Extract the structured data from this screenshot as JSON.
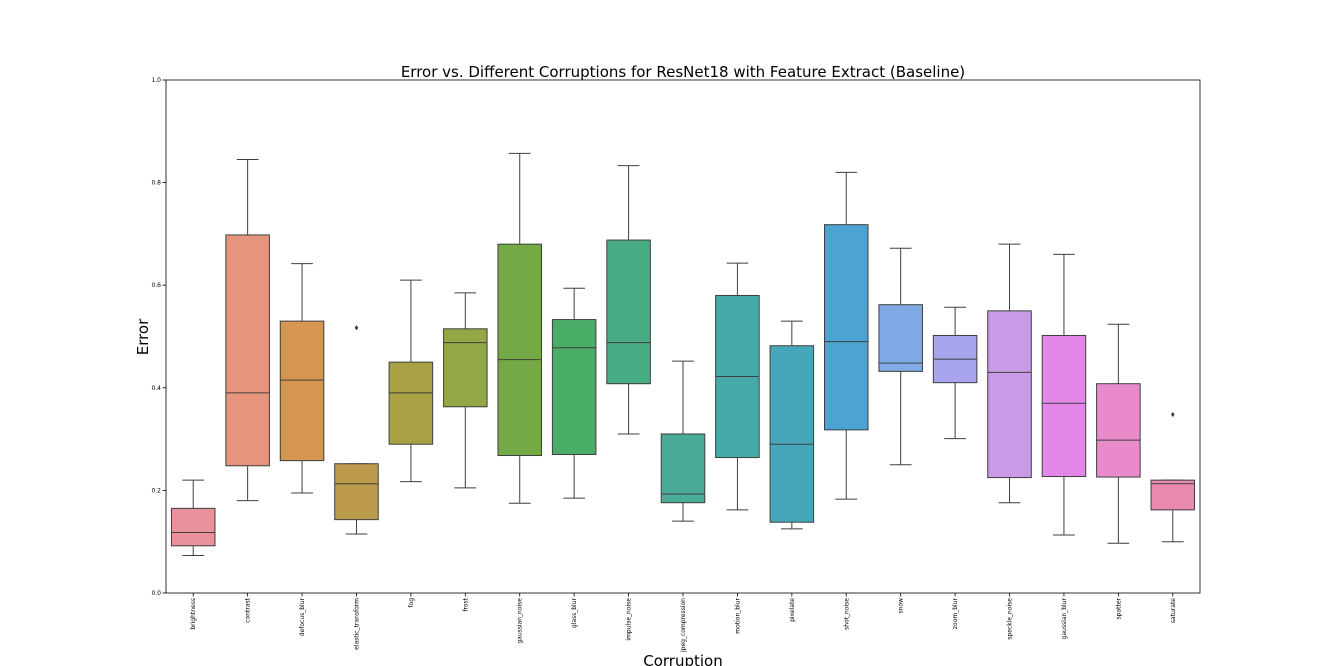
{
  "chart_data": {
    "type": "box",
    "title": "Error vs. Different Corruptions for ResNet18 with Feature Extract (Baseline)",
    "xlabel": "Corruption",
    "ylabel": "Error",
    "ylim": [
      0.0,
      1.0
    ],
    "yticks": [
      "0.0",
      "0.2",
      "0.4",
      "0.6",
      "0.8",
      "1.0"
    ],
    "grid": false,
    "categories": [
      "brightness",
      "contrast",
      "defocus_blur",
      "elastic_transform",
      "fog",
      "frost",
      "gaussian_noise",
      "glass_blur",
      "impulse_noise",
      "jpeg_compression",
      "motion_blur",
      "pixelate",
      "shot_noise",
      "snow",
      "zoom_blur",
      "speckle_noise",
      "gaussian_blur",
      "spatter",
      "saturate"
    ],
    "boxes": [
      {
        "whisker_low": 0.073,
        "q1": 0.092,
        "median": 0.118,
        "q3": 0.165,
        "whisker_high": 0.22,
        "outliers": [],
        "color": "#e8919a"
      },
      {
        "whisker_low": 0.18,
        "q1": 0.248,
        "median": 0.39,
        "q3": 0.698,
        "whisker_high": 0.845,
        "outliers": [],
        "color": "#e6957d"
      },
      {
        "whisker_low": 0.195,
        "q1": 0.258,
        "median": 0.415,
        "q3": 0.53,
        "whisker_high": 0.642,
        "outliers": [],
        "color": "#d69650"
      },
      {
        "whisker_low": 0.115,
        "q1": 0.143,
        "median": 0.213,
        "q3": 0.252,
        "whisker_high": 0.252,
        "outliers": [
          0.517
        ],
        "color": "#bd9b4c"
      },
      {
        "whisker_low": 0.217,
        "q1": 0.29,
        "median": 0.39,
        "q3": 0.45,
        "whisker_high": 0.61,
        "outliers": [],
        "color": "#aaa145"
      },
      {
        "whisker_low": 0.205,
        "q1": 0.363,
        "median": 0.488,
        "q3": 0.515,
        "whisker_high": 0.585,
        "outliers": [],
        "color": "#92a846"
      },
      {
        "whisker_low": 0.175,
        "q1": 0.268,
        "median": 0.455,
        "q3": 0.68,
        "whisker_high": 0.857,
        "outliers": [],
        "color": "#73aa45"
      },
      {
        "whisker_low": 0.185,
        "q1": 0.27,
        "median": 0.478,
        "q3": 0.533,
        "whisker_high": 0.594,
        "outliers": [],
        "color": "#4aad67"
      },
      {
        "whisker_low": 0.31,
        "q1": 0.408,
        "median": 0.488,
        "q3": 0.688,
        "whisker_high": 0.833,
        "outliers": [],
        "color": "#48ad85"
      },
      {
        "whisker_low": 0.14,
        "q1": 0.176,
        "median": 0.193,
        "q3": 0.31,
        "whisker_high": 0.452,
        "outliers": [],
        "color": "#4aab98"
      },
      {
        "whisker_low": 0.162,
        "q1": 0.264,
        "median": 0.422,
        "q3": 0.58,
        "whisker_high": 0.643,
        "outliers": [],
        "color": "#45a9a8"
      },
      {
        "whisker_low": 0.125,
        "q1": 0.138,
        "median": 0.29,
        "q3": 0.482,
        "whisker_high": 0.53,
        "outliers": [],
        "color": "#47a6ba"
      },
      {
        "whisker_low": 0.183,
        "q1": 0.318,
        "median": 0.49,
        "q3": 0.718,
        "whisker_high": 0.82,
        "outliers": [],
        "color": "#4ba4d1"
      },
      {
        "whisker_low": 0.25,
        "q1": 0.432,
        "median": 0.448,
        "q3": 0.562,
        "whisker_high": 0.672,
        "outliers": [],
        "color": "#7faae6"
      },
      {
        "whisker_low": 0.301,
        "q1": 0.41,
        "median": 0.456,
        "q3": 0.502,
        "whisker_high": 0.557,
        "outliers": [],
        "color": "#a6a5ee"
      },
      {
        "whisker_low": 0.176,
        "q1": 0.225,
        "median": 0.43,
        "q3": 0.55,
        "whisker_high": 0.68,
        "outliers": [],
        "color": "#c79be8"
      },
      {
        "whisker_low": 0.113,
        "q1": 0.227,
        "median": 0.37,
        "q3": 0.502,
        "whisker_high": 0.66,
        "outliers": [],
        "color": "#e388e9"
      },
      {
        "whisker_low": 0.097,
        "q1": 0.226,
        "median": 0.298,
        "q3": 0.408,
        "whisker_high": 0.524,
        "outliers": [],
        "color": "#e98bca"
      },
      {
        "whisker_low": 0.1,
        "q1": 0.162,
        "median": 0.213,
        "q3": 0.22,
        "whisker_high": 0.22,
        "outliers": [
          0.348
        ],
        "color": "#e88ab0"
      }
    ]
  }
}
